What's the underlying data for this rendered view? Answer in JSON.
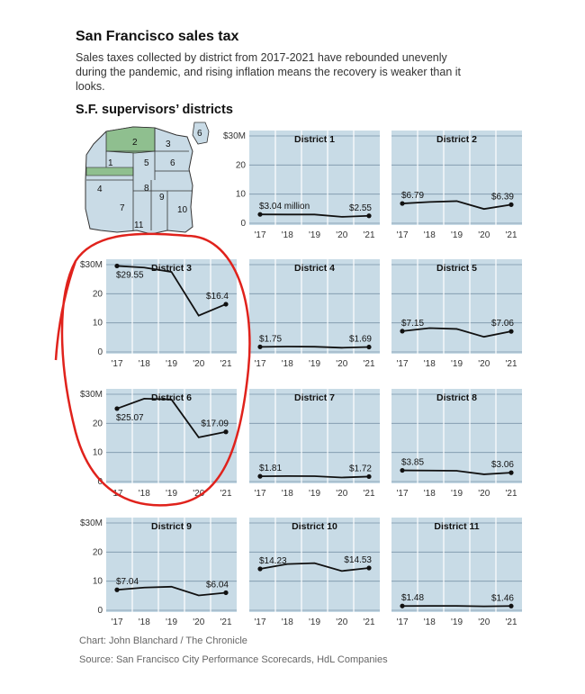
{
  "header": {
    "title": "San Francisco sales tax",
    "subtitle": "Sales taxes collected by district from 2017-2021 have rebounded unevenly during the pandemic, and rising inflation means the recovery is weaker than it looks.",
    "section": "S.F. supervisors’ districts"
  },
  "map": {
    "district_labels": [
      "1",
      "2",
      "3",
      "4",
      "5",
      "6",
      "7",
      "8",
      "9",
      "10",
      "11",
      "6"
    ],
    "colors": {
      "land": "#c9dbe6",
      "highlight": "#8fbf8f",
      "stroke": "#333333"
    }
  },
  "colors": {
    "panel_bg": "#c8dbe6",
    "grid": "#7a95a8",
    "line": "#111111",
    "annotation": "#e0221c"
  },
  "chart_data": [
    {
      "type": "line",
      "title": "District 1",
      "categories": [
        "'17",
        "'18",
        "'19",
        "'20",
        "'21"
      ],
      "values": [
        3.04,
        3.0,
        3.0,
        2.2,
        2.55
      ],
      "labels": {
        "first": "$3.04 million",
        "last": "$2.55"
      },
      "ylim": [
        0,
        30
      ],
      "yticks": [
        "$30M",
        "20",
        "10",
        "0"
      ]
    },
    {
      "type": "line",
      "title": "District 2",
      "categories": [
        "'17",
        "'18",
        "'19",
        "'20",
        "'21"
      ],
      "values": [
        6.79,
        7.3,
        7.6,
        4.9,
        6.39
      ],
      "labels": {
        "first": "$6.79",
        "last": "$6.39"
      },
      "ylim": [
        0,
        30
      ]
    },
    {
      "type": "line",
      "title": "District 3",
      "categories": [
        "'17",
        "'18",
        "'19",
        "'20",
        "'21"
      ],
      "values": [
        29.55,
        29.0,
        27.5,
        12.5,
        16.4
      ],
      "labels": {
        "first": "$29.55",
        "last": "$16.4"
      },
      "ylim": [
        0,
        30
      ],
      "yticks": [
        "$30M",
        "20",
        "10",
        "0"
      ]
    },
    {
      "type": "line",
      "title": "District 4",
      "categories": [
        "'17",
        "'18",
        "'19",
        "'20",
        "'21"
      ],
      "values": [
        1.75,
        1.85,
        1.8,
        1.45,
        1.69
      ],
      "labels": {
        "first": "$1.75",
        "last": "$1.69"
      },
      "ylim": [
        0,
        30
      ]
    },
    {
      "type": "line",
      "title": "District 5",
      "categories": [
        "'17",
        "'18",
        "'19",
        "'20",
        "'21"
      ],
      "values": [
        7.15,
        8.2,
        7.9,
        5.2,
        7.06
      ],
      "labels": {
        "first": "$7.15",
        "last": "$7.06"
      },
      "ylim": [
        0,
        30
      ]
    },
    {
      "type": "line",
      "title": "District 6",
      "categories": [
        "'17",
        "'18",
        "'19",
        "'20",
        "'21"
      ],
      "values": [
        25.07,
        28.5,
        28.2,
        15.2,
        17.09
      ],
      "labels": {
        "first": "$25.07",
        "last": "$17.09"
      },
      "ylim": [
        0,
        30
      ],
      "yticks": [
        "$30M",
        "20",
        "10",
        "0"
      ]
    },
    {
      "type": "line",
      "title": "District 7",
      "categories": [
        "'17",
        "'18",
        "'19",
        "'20",
        "'21"
      ],
      "values": [
        1.81,
        1.9,
        1.85,
        1.4,
        1.72
      ],
      "labels": {
        "first": "$1.81",
        "last": "$1.72"
      },
      "ylim": [
        0,
        30
      ]
    },
    {
      "type": "line",
      "title": "District 8",
      "categories": [
        "'17",
        "'18",
        "'19",
        "'20",
        "'21"
      ],
      "values": [
        3.85,
        3.8,
        3.7,
        2.5,
        3.06
      ],
      "labels": {
        "first": "$3.85",
        "last": "$3.06"
      },
      "ylim": [
        0,
        30
      ]
    },
    {
      "type": "line",
      "title": "District 9",
      "categories": [
        "'17",
        "'18",
        "'19",
        "'20",
        "'21"
      ],
      "values": [
        7.04,
        7.8,
        8.1,
        5.1,
        6.04
      ],
      "labels": {
        "first": "$7.04",
        "last": "$6.04"
      },
      "ylim": [
        0,
        30
      ],
      "yticks": [
        "$30M",
        "20",
        "10",
        "0"
      ]
    },
    {
      "type": "line",
      "title": "District 10",
      "categories": [
        "'17",
        "'18",
        "'19",
        "'20",
        "'21"
      ],
      "values": [
        14.23,
        15.9,
        16.2,
        13.5,
        14.53
      ],
      "labels": {
        "first": "$14.23",
        "last": "$14.53"
      },
      "ylim": [
        0,
        30
      ]
    },
    {
      "type": "line",
      "title": "District 11",
      "categories": [
        "'17",
        "'18",
        "'19",
        "'20",
        "'21"
      ],
      "values": [
        1.48,
        1.5,
        1.5,
        1.35,
        1.46
      ],
      "labels": {
        "first": "$1.48",
        "last": "$1.46"
      },
      "ylim": [
        0,
        30
      ]
    }
  ],
  "footer": {
    "credit": "Chart: John Blanchard / The Chronicle",
    "source": "Source: San Francisco City Performance Scorecards, HdL Companies"
  }
}
